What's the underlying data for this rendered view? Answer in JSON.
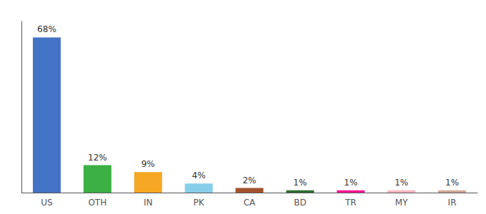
{
  "chart_data": {
    "type": "bar",
    "categories": [
      "US",
      "OTH",
      "IN",
      "PK",
      "CA",
      "BD",
      "TR",
      "MY",
      "IR"
    ],
    "values": [
      68,
      12,
      9,
      4,
      2,
      1,
      1,
      1,
      1
    ],
    "value_labels": [
      "68%",
      "12%",
      "9%",
      "4%",
      "2%",
      "1%",
      "1%",
      "1%",
      "1%"
    ],
    "colors": [
      "#4472C4",
      "#3CB043",
      "#F5A623",
      "#87CEEB",
      "#A0522D",
      "#2E6B2E",
      "#FF1493",
      "#FFB6C1",
      "#D2A898"
    ],
    "ylim": [
      0,
      75
    ],
    "data_labels": true,
    "tick_labels": "x",
    "grid": false
  }
}
